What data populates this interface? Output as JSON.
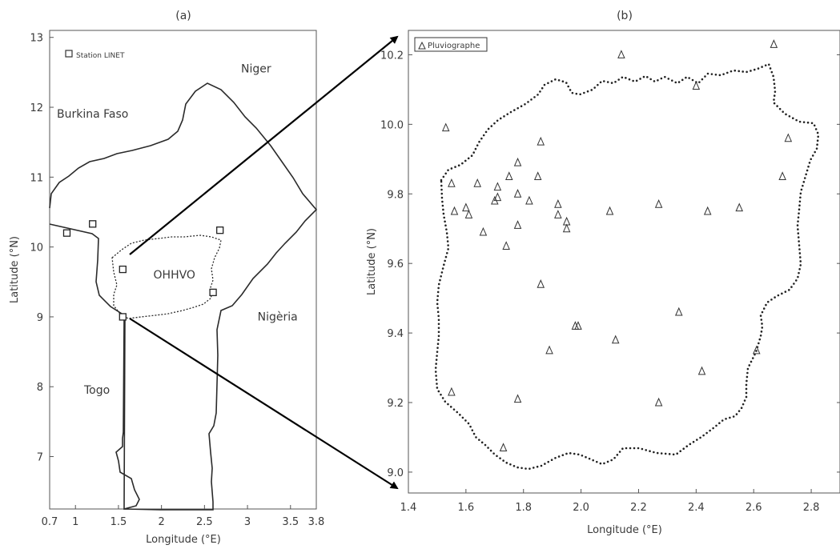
{
  "panel_a": {
    "title": "(a)",
    "xlabel": "Longitude (°E)",
    "ylabel": "Latitude (°N)",
    "xticks": [
      0.7,
      1,
      1.5,
      2,
      2.5,
      3,
      3.5,
      3.8
    ],
    "xtick_labels": [
      "0.7",
      "1",
      "1.5",
      "2",
      "2.5",
      "3",
      "3.5",
      "3.8"
    ],
    "yticks": [
      7,
      8,
      9,
      10,
      11,
      12,
      13
    ],
    "xlim": [
      0.7,
      3.8
    ],
    "ylim": [
      6.25,
      13.1
    ],
    "legend": "Station LINET",
    "country_labels": [
      {
        "text": "Niger",
        "lon": 3.1,
        "lat": 12.5
      },
      {
        "text": "Burkina Faso",
        "lon": 1.2,
        "lat": 11.85
      },
      {
        "text": "OHHVO",
        "lon": 2.15,
        "lat": 9.55
      },
      {
        "text": "Nigèria",
        "lon": 3.35,
        "lat": 8.95
      },
      {
        "text": "Togo",
        "lon": 1.25,
        "lat": 7.9
      }
    ],
    "stations": [
      {
        "lon": 0.9,
        "lat": 10.2
      },
      {
        "lon": 1.2,
        "lat": 10.33
      },
      {
        "lon": 1.55,
        "lat": 9.68
      },
      {
        "lon": 1.55,
        "lat": 9.0
      },
      {
        "lon": 2.6,
        "lat": 9.35
      },
      {
        "lon": 2.68,
        "lat": 10.24
      }
    ]
  },
  "panel_b": {
    "title": "(b)",
    "xlabel": "Longitude (°E)",
    "ylabel": "Latitude (°N)",
    "xticks": [
      1.4,
      1.6,
      1.8,
      2.0,
      2.2,
      2.4,
      2.6,
      2.8
    ],
    "xtick_labels": [
      "1.4",
      "1.6",
      "1.8",
      "2.0",
      "2.2",
      "2.4",
      "2.6",
      "2.8"
    ],
    "yticks": [
      9.0,
      9.2,
      9.4,
      9.6,
      9.8,
      10.0,
      10.2
    ],
    "ytick_labels": [
      "9.0",
      "9.2",
      "9.4",
      "9.6",
      "9.8",
      "10.0",
      "10.2"
    ],
    "xlim": [
      1.4,
      2.9
    ],
    "ylim": [
      8.94,
      10.27
    ],
    "legend": "Pluviographe",
    "gauges": [
      [
        2.14,
        10.2
      ],
      [
        2.67,
        10.23
      ],
      [
        2.4,
        10.11
      ],
      [
        1.53,
        9.99
      ],
      [
        1.86,
        9.95
      ],
      [
        2.72,
        9.96
      ],
      [
        1.78,
        9.89
      ],
      [
        2.7,
        9.85
      ],
      [
        1.64,
        9.83
      ],
      [
        1.75,
        9.85
      ],
      [
        1.85,
        9.85
      ],
      [
        1.55,
        9.83
      ],
      [
        1.71,
        9.82
      ],
      [
        1.78,
        9.8
      ],
      [
        1.71,
        9.79
      ],
      [
        1.7,
        9.78
      ],
      [
        1.82,
        9.78
      ],
      [
        1.92,
        9.77
      ],
      [
        2.27,
        9.77
      ],
      [
        1.6,
        9.76
      ],
      [
        1.56,
        9.75
      ],
      [
        1.61,
        9.74
      ],
      [
        1.92,
        9.74
      ],
      [
        2.1,
        9.75
      ],
      [
        2.44,
        9.75
      ],
      [
        2.55,
        9.76
      ],
      [
        1.95,
        9.72
      ],
      [
        1.78,
        9.71
      ],
      [
        1.95,
        9.7
      ],
      [
        1.66,
        9.69
      ],
      [
        1.74,
        9.65
      ],
      [
        1.86,
        9.54
      ],
      [
        2.34,
        9.46
      ],
      [
        1.98,
        9.42
      ],
      [
        1.99,
        9.42
      ],
      [
        2.12,
        9.38
      ],
      [
        1.89,
        9.35
      ],
      [
        2.61,
        9.35
      ],
      [
        2.42,
        9.29
      ],
      [
        1.55,
        9.23
      ],
      [
        1.78,
        9.21
      ],
      [
        2.27,
        9.2
      ],
      [
        1.73,
        9.07
      ]
    ]
  }
}
